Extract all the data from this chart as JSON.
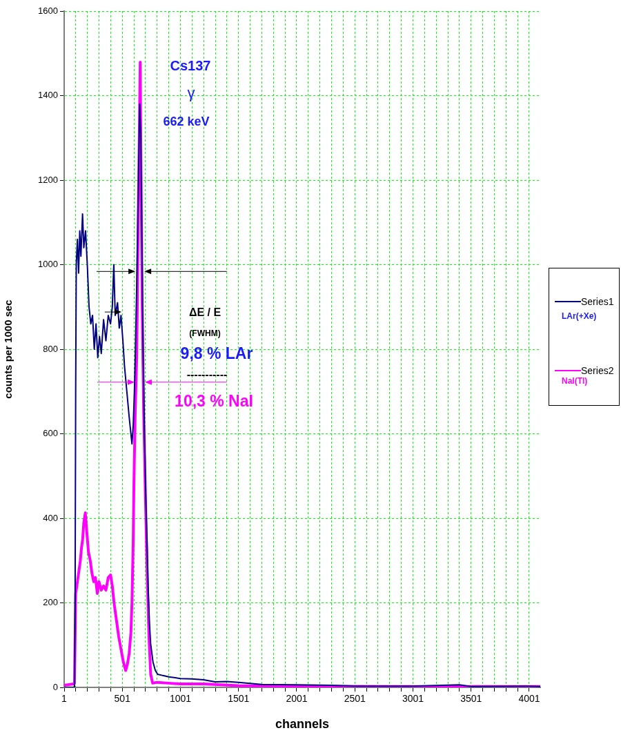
{
  "chart_data": {
    "type": "line",
    "xlabel": "channels",
    "ylabel": "counts per 1000 sec",
    "xlim": [
      1,
      4096
    ],
    "xticks": [
      1,
      {
        "value": 101,
        "label": null
      },
      {
        "value": 201,
        "label": null
      },
      {
        "value": 301,
        "label": null
      },
      {
        "value": 401,
        "label": null
      },
      501,
      {
        "value": 601,
        "label": null
      },
      {
        "value": 701,
        "label": null
      },
      {
        "value": 801,
        "label": null
      },
      {
        "value": 901,
        "label": null
      },
      1001,
      {
        "value": 1101,
        "label": null
      },
      {
        "value": 1201,
        "label": null
      },
      {
        "value": 1301,
        "label": null
      },
      {
        "value": 1401,
        "label": null
      },
      1501,
      {
        "value": 1601,
        "label": null
      },
      {
        "value": 1701,
        "label": null
      },
      {
        "value": 1801,
        "label": null
      },
      {
        "value": 1901,
        "label": null
      },
      2001,
      {
        "value": 2101,
        "label": null
      },
      {
        "value": 2201,
        "label": null
      },
      {
        "value": 2301,
        "label": null
      },
      {
        "value": 2401,
        "label": null
      },
      2501,
      {
        "value": 2601,
        "label": null
      },
      {
        "value": 2701,
        "label": null
      },
      {
        "value": 2801,
        "label": null
      },
      {
        "value": 2901,
        "label": null
      },
      3001,
      {
        "value": 3101,
        "label": null
      },
      {
        "value": 3201,
        "label": null
      },
      {
        "value": 3301,
        "label": null
      },
      {
        "value": 3401,
        "label": null
      },
      3501,
      {
        "value": 3601,
        "label": null
      },
      {
        "value": 3701,
        "label": null
      },
      {
        "value": 3801,
        "label": null
      },
      {
        "value": 3901,
        "label": null
      },
      4001
    ],
    "ylim": [
      0,
      1600
    ],
    "yticks": [
      0,
      200,
      400,
      600,
      800,
      1000,
      1200,
      1400,
      1600
    ],
    "grid": true,
    "legend": "right",
    "marker": "none",
    "line_style": "solid",
    "annotations": [
      "Cs137",
      "γ",
      "662 keV",
      "ΔE / E",
      "(FWHM)",
      "9,8 % LAr",
      "-----------",
      {
        "text": "10,3 % NaI",
        "x": 695,
        "y": 722
      },
      "LAr(+Xe)",
      "NaI(Tl)"
    ],
    "series": [
      {
        "name": "Series1",
        "color": "#000080",
        "x": [
          1,
          80,
          90,
          95,
          100,
          105,
          115,
          125,
          135,
          145,
          159,
          170,
          185,
          200,
          215,
          230,
          245,
          260,
          275,
          290,
          305,
          320,
          340,
          360,
          380,
          400,
          415,
          428,
          440,
          460,
          475,
          490,
          506,
          520,
          540,
          560,
          575,
          584,
          595,
          605,
          613,
          625,
          640,
          650,
          660,
          670,
          680,
          690,
          697,
          703,
          715,
          725,
          735,
          745,
          765,
          785,
          805,
          850,
          900,
          1000,
          1100,
          1200,
          1300,
          1400,
          1500,
          1700,
          2000,
          2300,
          2500,
          3000,
          3400,
          3500,
          4000,
          4096
        ],
        "values": [
          0,
          0,
          2,
          200,
          700,
          1000,
          1060,
          980,
          1080,
          1020,
          1120,
          1040,
          1080,
          1000,
          900,
          860,
          880,
          800,
          860,
          780,
          830,
          790,
          870,
          820,
          880,
          860,
          900,
          1000,
          880,
          910,
          850,
          880,
          820,
          760,
          700,
          640,
          600,
          576,
          620,
          700,
          790,
          950,
          1200,
          1380,
          1300,
          1050,
          800,
          620,
          537,
          450,
          330,
          222,
          150,
          103,
          60,
          40,
          31,
          28,
          25,
          21,
          20,
          18,
          13,
          14,
          12,
          7,
          6,
          5,
          3,
          3,
          6,
          2,
          3,
          2
        ]
      },
      {
        "name": "Series2",
        "color": "#ff00ff",
        "x": [
          1,
          80,
          90,
          95,
          100,
          110,
          120,
          130,
          140,
          150,
          160,
          170,
          183,
          195,
          210,
          225,
          240,
          255,
          270,
          286,
          300,
          320,
          340,
          360,
          380,
          400,
          415,
          430,
          450,
          470,
          490,
          510,
          530,
          545,
          560,
          575,
          584,
          595,
          601,
          612,
          625,
          640,
          655,
          663,
          672,
          685,
          700,
          715,
          730,
          745,
          762,
          800,
          900,
          1000,
          1200,
          1500,
          2000,
          3000,
          4096
        ],
        "values": [
          5,
          8,
          10,
          120,
          222,
          240,
          260,
          280,
          300,
          330,
          350,
          390,
          413,
          370,
          320,
          300,
          270,
          250,
          260,
          222,
          250,
          230,
          240,
          230,
          260,
          266,
          240,
          200,
          160,
          120,
          90,
          60,
          40,
          55,
          80,
          130,
          200,
          350,
          483,
          650,
          782,
          1150,
          1479,
          1200,
          900,
          650,
          450,
          266,
          120,
          31,
          10,
          12,
          10,
          8,
          8,
          4,
          3,
          2,
          2
        ]
      }
    ]
  }
}
